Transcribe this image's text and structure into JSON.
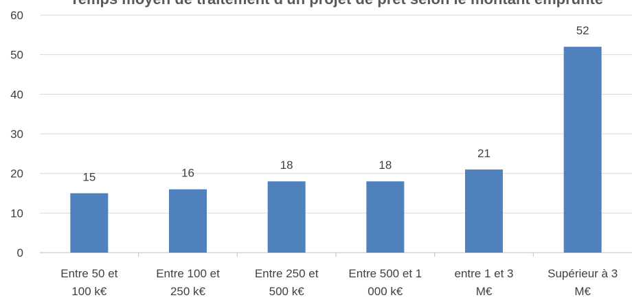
{
  "chart_data": {
    "type": "bar",
    "title": "Temps moyen de traitement d'un projet de prêt selon le montant emprunté",
    "categories": [
      [
        "Entre 50 et",
        "100 k€"
      ],
      [
        "Entre 100 et",
        "250 k€"
      ],
      [
        "Entre 250 et",
        "500 k€"
      ],
      [
        "Entre 500 et 1",
        "000 k€"
      ],
      [
        "entre 1 et 3",
        "M€"
      ],
      [
        "Supérieur à 3",
        "M€"
      ]
    ],
    "values": [
      15,
      16,
      18,
      18,
      21,
      52
    ],
    "data_labels": [
      "15",
      "16",
      "18",
      "18",
      "21",
      "52"
    ],
    "ylim": [
      0,
      60
    ],
    "yticks": [
      0,
      10,
      20,
      30,
      40,
      50,
      60
    ],
    "xlabel": "",
    "ylabel": "",
    "grid": true,
    "legend": "none",
    "colors": {
      "bar": "#4F81BD",
      "grid": "#D9D9D9",
      "axis": "#BFBFBF",
      "text": "#404040"
    }
  }
}
